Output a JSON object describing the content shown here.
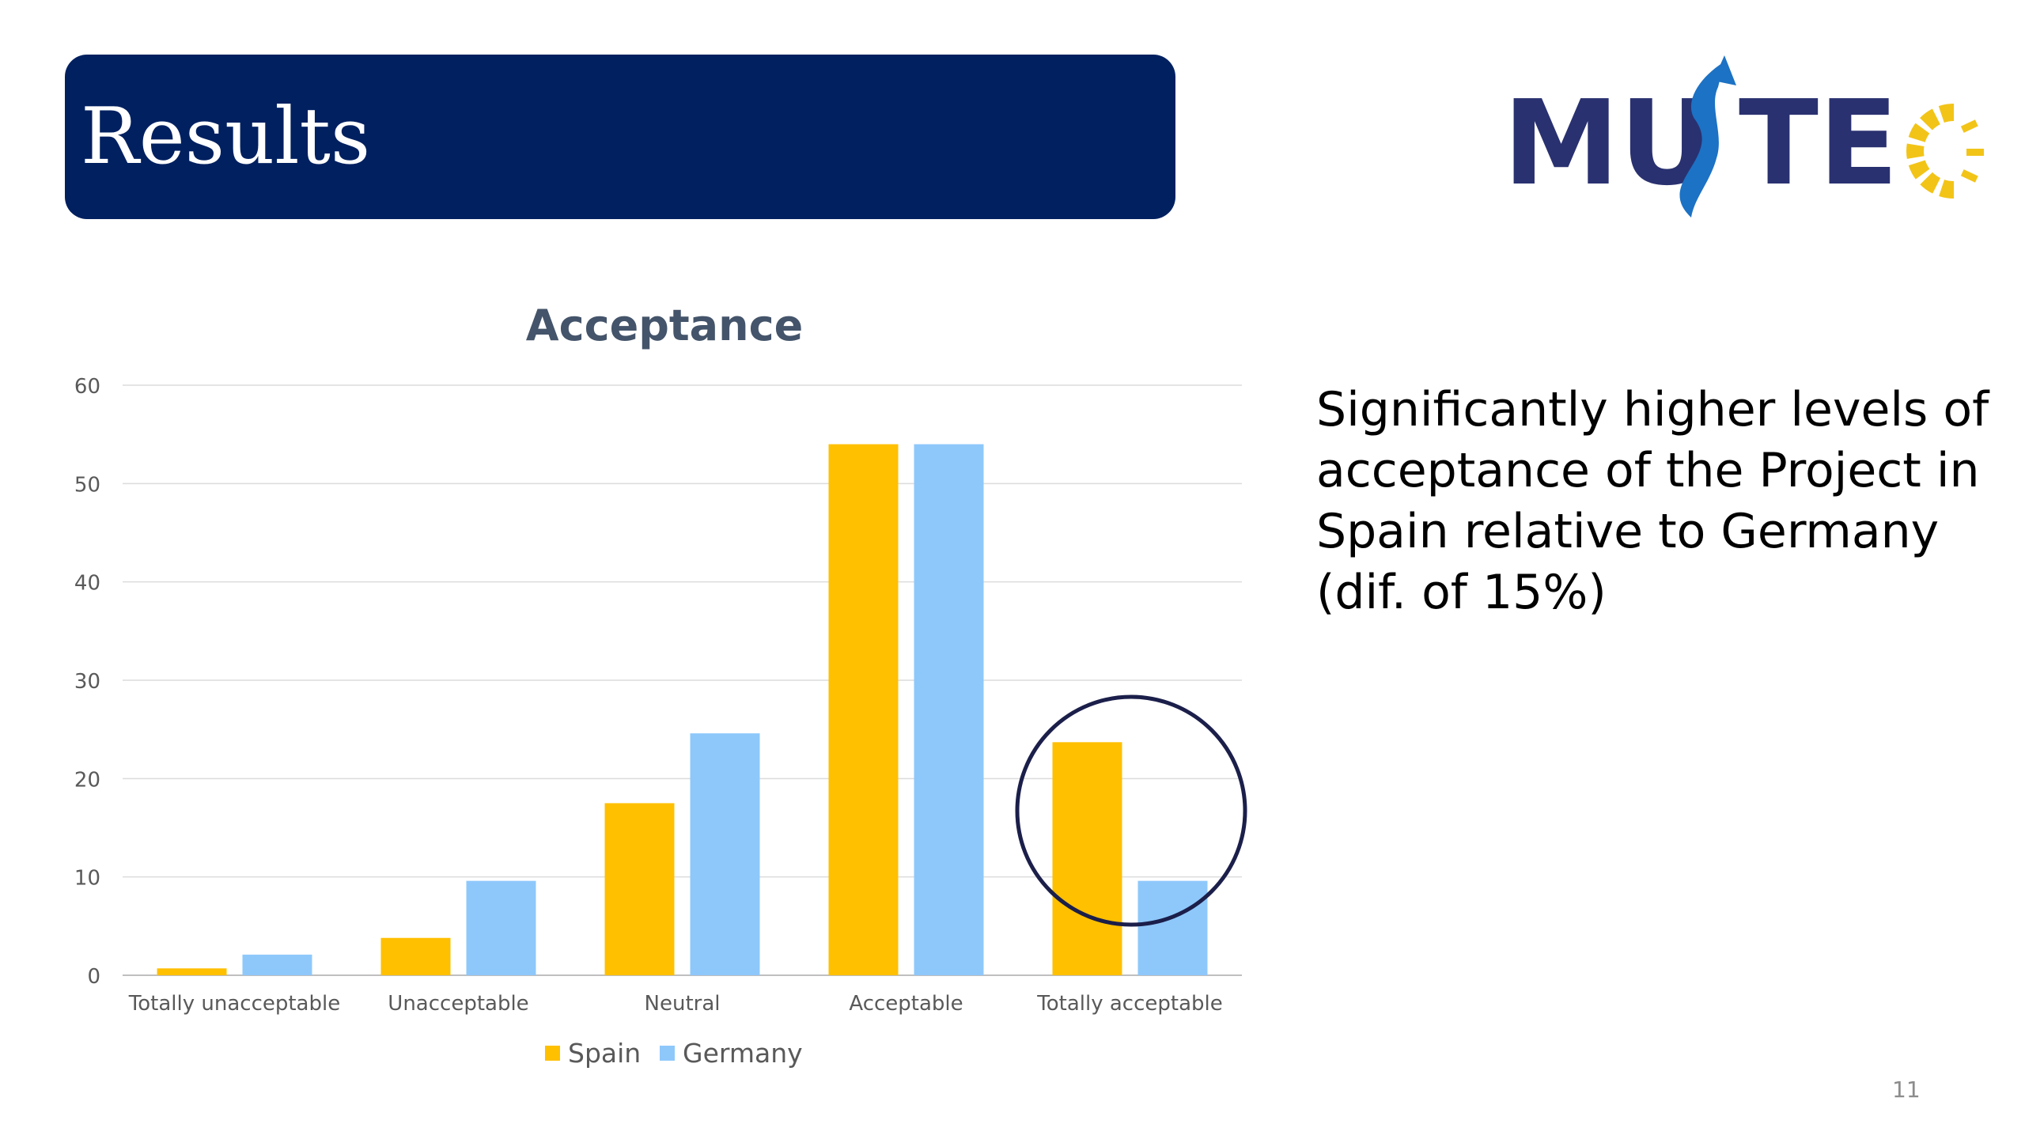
{
  "slide": {
    "title": "Results",
    "page_number": "11",
    "note": "Significantly higher levels of acceptance of the Project in Spain relative to Germany (dif. of 15%)"
  },
  "logo": {
    "text": "MUSTEC",
    "colors": {
      "text": "#2a3170",
      "arrow": "#1c72c4",
      "sun": "#f2c418"
    }
  },
  "colors": {
    "banner": "#002060",
    "spain": "#ffc000",
    "germany": "#8ec8fb",
    "highlight_circle": "#1b1f4a",
    "gridline": "#dcdcdc",
    "axis_text": "#595959",
    "title_text": "#44546a"
  },
  "chart_data": {
    "type": "bar",
    "title": "Acceptance",
    "xlabel": "",
    "ylabel": "",
    "ylim": [
      0,
      60
    ],
    "yticks": [
      0,
      10,
      20,
      30,
      40,
      50,
      60
    ],
    "grid": true,
    "legend_position": "bottom",
    "categories": [
      "Totally unacceptable",
      "Unacceptable",
      "Neutral",
      "Acceptable",
      "Totally acceptable"
    ],
    "series": [
      {
        "name": "Spain",
        "color": "#ffc000",
        "values": [
          0.7,
          3.8,
          17.5,
          54,
          23.7
        ]
      },
      {
        "name": "Germany",
        "color": "#8ec8fb",
        "values": [
          2.1,
          9.6,
          24.6,
          54,
          9.6
        ]
      }
    ],
    "annotation": {
      "type": "circle",
      "category": "Totally acceptable"
    }
  }
}
